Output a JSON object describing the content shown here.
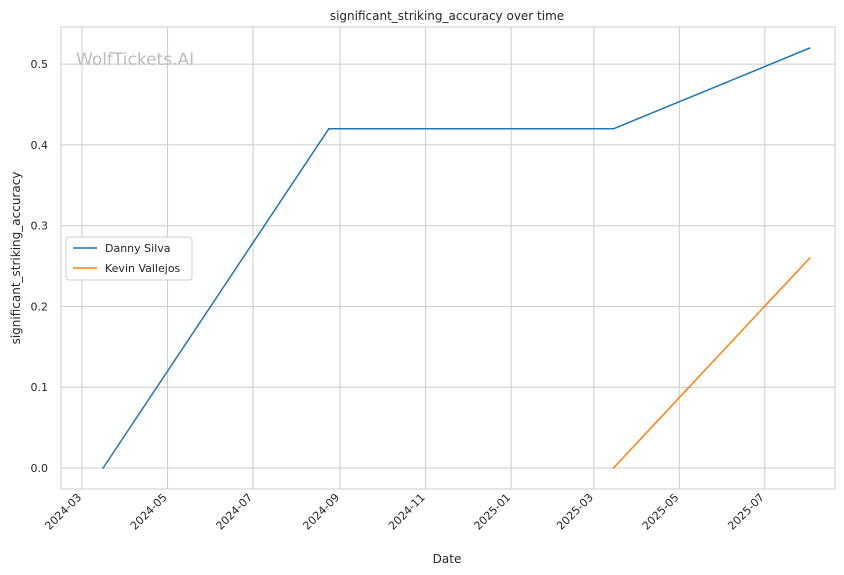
{
  "chart_data": {
    "type": "line",
    "title": "significant_striking_accuracy over time",
    "xlabel": "Date",
    "ylabel": "significant_striking_accuracy",
    "watermark": "WolfTickets.AI",
    "x_ticks": [
      "2024-03",
      "2024-05",
      "2024-07",
      "2024-09",
      "2024-11",
      "2025-01",
      "2025-03",
      "2025-05",
      "2025-07"
    ],
    "y_ticks": [
      "0.0",
      "0.1",
      "0.2",
      "0.3",
      "0.4",
      "0.5"
    ],
    "xlim": [
      "2024-02-15",
      "2025-08-20"
    ],
    "ylim": [
      -0.026,
      0.546
    ],
    "grid": true,
    "legend_position": "center-left",
    "series": [
      {
        "name": "Danny Silva",
        "color": "#1f77b4",
        "points": [
          {
            "x": "2024-03-16",
            "y": 0.0
          },
          {
            "x": "2024-08-24",
            "y": 0.42
          },
          {
            "x": "2025-03-15",
            "y": 0.42
          },
          {
            "x": "2025-08-02",
            "y": 0.52
          }
        ]
      },
      {
        "name": "Kevin Vallejos",
        "color": "#ff7f0e",
        "points": [
          {
            "x": "2025-03-15",
            "y": 0.0
          },
          {
            "x": "2025-08-02",
            "y": 0.26
          }
        ]
      }
    ]
  }
}
